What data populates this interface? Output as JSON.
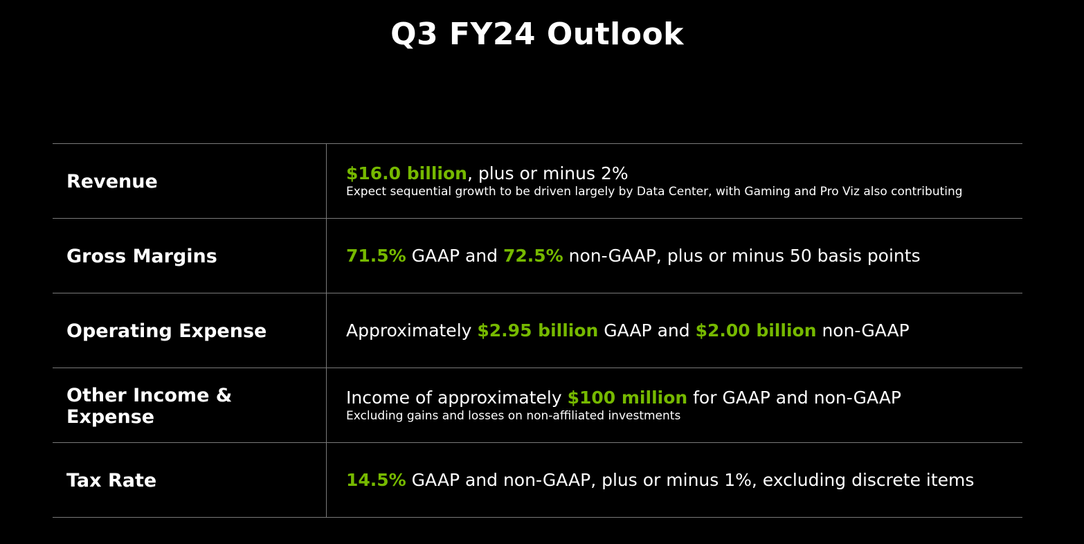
{
  "title": "Q3 FY24 Outlook",
  "colors": {
    "accent": "#76b900",
    "background": "#000000",
    "text": "#ffffff",
    "rule": "#7a7a7a"
  },
  "rows": [
    {
      "label": "Revenue",
      "line": [
        {
          "text": "$16.0 billion",
          "highlight": true
        },
        {
          "text": ", plus or minus 2%",
          "highlight": false
        }
      ],
      "note": "Expect sequential growth to be driven largely by Data Center, with Gaming and Pro Viz also contributing"
    },
    {
      "label": "Gross Margins",
      "line": [
        {
          "text": "71.5%",
          "highlight": true
        },
        {
          "text": " GAAP and ",
          "highlight": false
        },
        {
          "text": "72.5%",
          "highlight": true
        },
        {
          "text": " non-GAAP, plus or minus 50 basis points",
          "highlight": false
        }
      ]
    },
    {
      "label": "Operating Expense",
      "line": [
        {
          "text": "Approximately ",
          "highlight": false
        },
        {
          "text": "$2.95 billion",
          "highlight": true
        },
        {
          "text": " GAAP and ",
          "highlight": false
        },
        {
          "text": "$2.00 billion",
          "highlight": true
        },
        {
          "text": " non-GAAP",
          "highlight": false
        }
      ]
    },
    {
      "label": "Other Income & Expense",
      "line": [
        {
          "text": "Income of approximately ",
          "highlight": false
        },
        {
          "text": "$100 million",
          "highlight": true
        },
        {
          "text": " for GAAP and non-GAAP",
          "highlight": false
        }
      ],
      "note": "Excluding gains and losses on non-affiliated investments"
    },
    {
      "label": "Tax Rate",
      "line": [
        {
          "text": "14.5%",
          "highlight": true
        },
        {
          "text": " GAAP and non-GAAP, plus or minus 1%, excluding discrete items",
          "highlight": false
        }
      ]
    }
  ]
}
